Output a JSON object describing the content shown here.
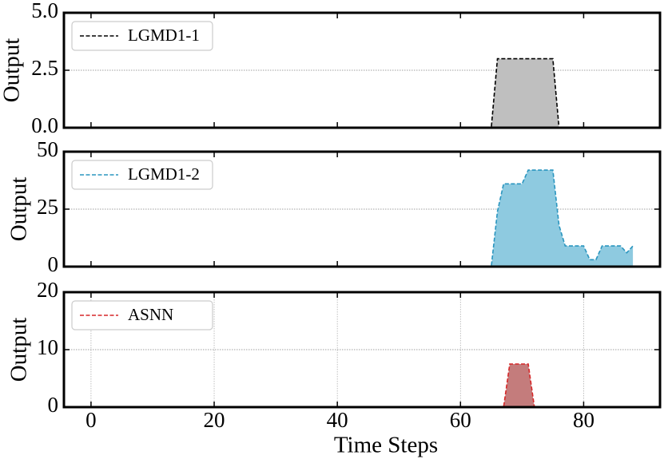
{
  "chart_data": [
    {
      "type": "line",
      "ylabel": "Output",
      "x": [
        0,
        1,
        2,
        3,
        4,
        5,
        6,
        7,
        8,
        9,
        10,
        11,
        12,
        13,
        14,
        15,
        16,
        17,
        18,
        19,
        20,
        21,
        22,
        23,
        24,
        25,
        26,
        27,
        28,
        29,
        30,
        31,
        32,
        33,
        34,
        35,
        36,
        37,
        38,
        39,
        40,
        41,
        42,
        43,
        44,
        45,
        46,
        47,
        48,
        49,
        50,
        51,
        52,
        53,
        54,
        55,
        56,
        57,
        58,
        59,
        60,
        61,
        62,
        63,
        64,
        65,
        66,
        67,
        68,
        69,
        70,
        71,
        72,
        73,
        74,
        75,
        76,
        77,
        78,
        79,
        80,
        81,
        82,
        83,
        84,
        85,
        86,
        87,
        88
      ],
      "series": [
        {
          "name": "LGMD1-1",
          "color": "#000000",
          "fill": "#bfbfbf",
          "values": [
            0,
            0,
            0,
            0,
            0,
            0,
            0,
            0,
            0,
            0,
            0,
            0,
            0,
            0,
            0,
            0,
            0,
            0,
            0,
            0,
            0,
            0,
            0,
            0,
            0,
            0,
            0,
            0,
            0,
            0,
            0,
            0,
            0,
            0,
            0,
            0,
            0,
            0,
            0,
            0,
            0,
            0,
            0,
            0,
            0,
            0,
            0,
            0,
            0,
            0,
            0,
            0,
            0,
            0,
            0,
            0,
            0,
            0,
            0,
            0,
            0,
            0,
            0,
            0,
            0,
            0,
            3,
            3,
            3,
            3,
            3,
            3,
            3,
            3,
            3,
            3,
            0,
            0,
            0,
            0,
            0,
            0,
            0,
            0,
            0,
            0,
            0,
            0,
            0
          ]
        }
      ],
      "xlim": [
        -4.4,
        92.4
      ],
      "ylim": [
        0,
        5
      ],
      "yticks": [
        {
          "value": 0,
          "label": "0.0"
        },
        {
          "value": 2.5,
          "label": "2.5"
        },
        {
          "value": 5,
          "label": "5.0"
        }
      ],
      "grid": "y",
      "legend": "upper left"
    },
    {
      "type": "line",
      "ylabel": "Output",
      "x": [
        0,
        1,
        2,
        3,
        4,
        5,
        6,
        7,
        8,
        9,
        10,
        11,
        12,
        13,
        14,
        15,
        16,
        17,
        18,
        19,
        20,
        21,
        22,
        23,
        24,
        25,
        26,
        27,
        28,
        29,
        30,
        31,
        32,
        33,
        34,
        35,
        36,
        37,
        38,
        39,
        40,
        41,
        42,
        43,
        44,
        45,
        46,
        47,
        48,
        49,
        50,
        51,
        52,
        53,
        54,
        55,
        56,
        57,
        58,
        59,
        60,
        61,
        62,
        63,
        64,
        65,
        66,
        67,
        68,
        69,
        70,
        71,
        72,
        73,
        74,
        75,
        76,
        77,
        78,
        79,
        80,
        81,
        82,
        83,
        84,
        85,
        86,
        87,
        88
      ],
      "series": [
        {
          "name": "LGMD1-2",
          "color": "#2a95bf",
          "fill": "#8ecae0",
          "values": [
            0,
            0,
            0,
            0,
            0,
            0,
            0,
            0,
            0,
            0,
            0,
            0,
            0,
            0,
            0,
            0,
            0,
            0,
            0,
            0,
            0,
            0,
            0,
            0,
            0,
            0,
            0,
            0,
            0,
            0,
            0,
            0,
            0,
            0,
            0,
            0,
            0,
            0,
            0,
            0,
            0,
            0,
            0,
            0,
            0,
            0,
            0,
            0,
            0,
            0,
            0,
            0,
            0,
            0,
            0,
            0,
            0,
            0,
            0,
            0,
            0,
            0,
            0,
            0,
            0,
            0,
            24,
            36,
            36,
            36,
            36,
            42,
            42,
            42,
            42,
            42,
            18,
            9,
            9,
            9,
            9,
            3,
            3,
            9,
            9,
            9,
            9,
            6,
            9
          ]
        }
      ],
      "xlim": [
        -4.4,
        92.4
      ],
      "ylim": [
        0,
        50
      ],
      "yticks": [
        0,
        25,
        50
      ],
      "grid": "y",
      "legend": "upper left"
    },
    {
      "type": "line",
      "ylabel": "Output",
      "xlabel": "Time Steps",
      "x": [
        0,
        1,
        2,
        3,
        4,
        5,
        6,
        7,
        8,
        9,
        10,
        11,
        12,
        13,
        14,
        15,
        16,
        17,
        18,
        19,
        20,
        21,
        22,
        23,
        24,
        25,
        26,
        27,
        28,
        29,
        30,
        31,
        32,
        33,
        34,
        35,
        36,
        37,
        38,
        39,
        40,
        41,
        42,
        43,
        44,
        45,
        46,
        47,
        48,
        49,
        50,
        51,
        52,
        53,
        54,
        55,
        56,
        57,
        58,
        59,
        60,
        61,
        62,
        63,
        64,
        65,
        66,
        67,
        68,
        69,
        70,
        71,
        72,
        73,
        74,
        75,
        76,
        77,
        78,
        79,
        80,
        81,
        82,
        83,
        84,
        85,
        86,
        87,
        88
      ],
      "series": [
        {
          "name": "ASNN",
          "color": "#d62728",
          "fill": "#c47c7c",
          "values": [
            0,
            0,
            0,
            0,
            0,
            0,
            0,
            0,
            0,
            0,
            0,
            0,
            0,
            0,
            0,
            0,
            0,
            0,
            0,
            0,
            0,
            0,
            0,
            0,
            0,
            0,
            0,
            0,
            0,
            0,
            0,
            0,
            0,
            0,
            0,
            0,
            0,
            0,
            0,
            0,
            0,
            0,
            0,
            0,
            0,
            0,
            0,
            0,
            0,
            0,
            0,
            0,
            0,
            0,
            0,
            0,
            0,
            0,
            0,
            0,
            0,
            0,
            0,
            0,
            0,
            0,
            0,
            0,
            7.5,
            7.5,
            7.5,
            7.5,
            0,
            0,
            0,
            0,
            0,
            0,
            0,
            0,
            0,
            0,
            0,
            0,
            0,
            0,
            0,
            0,
            0
          ]
        }
      ],
      "xlim": [
        -4.4,
        92.4
      ],
      "ylim": [
        0,
        20
      ],
      "yticks": [
        0,
        10,
        20
      ],
      "xticks": [
        0,
        20,
        40,
        60,
        80
      ],
      "grid": "both",
      "legend": "upper left"
    }
  ]
}
